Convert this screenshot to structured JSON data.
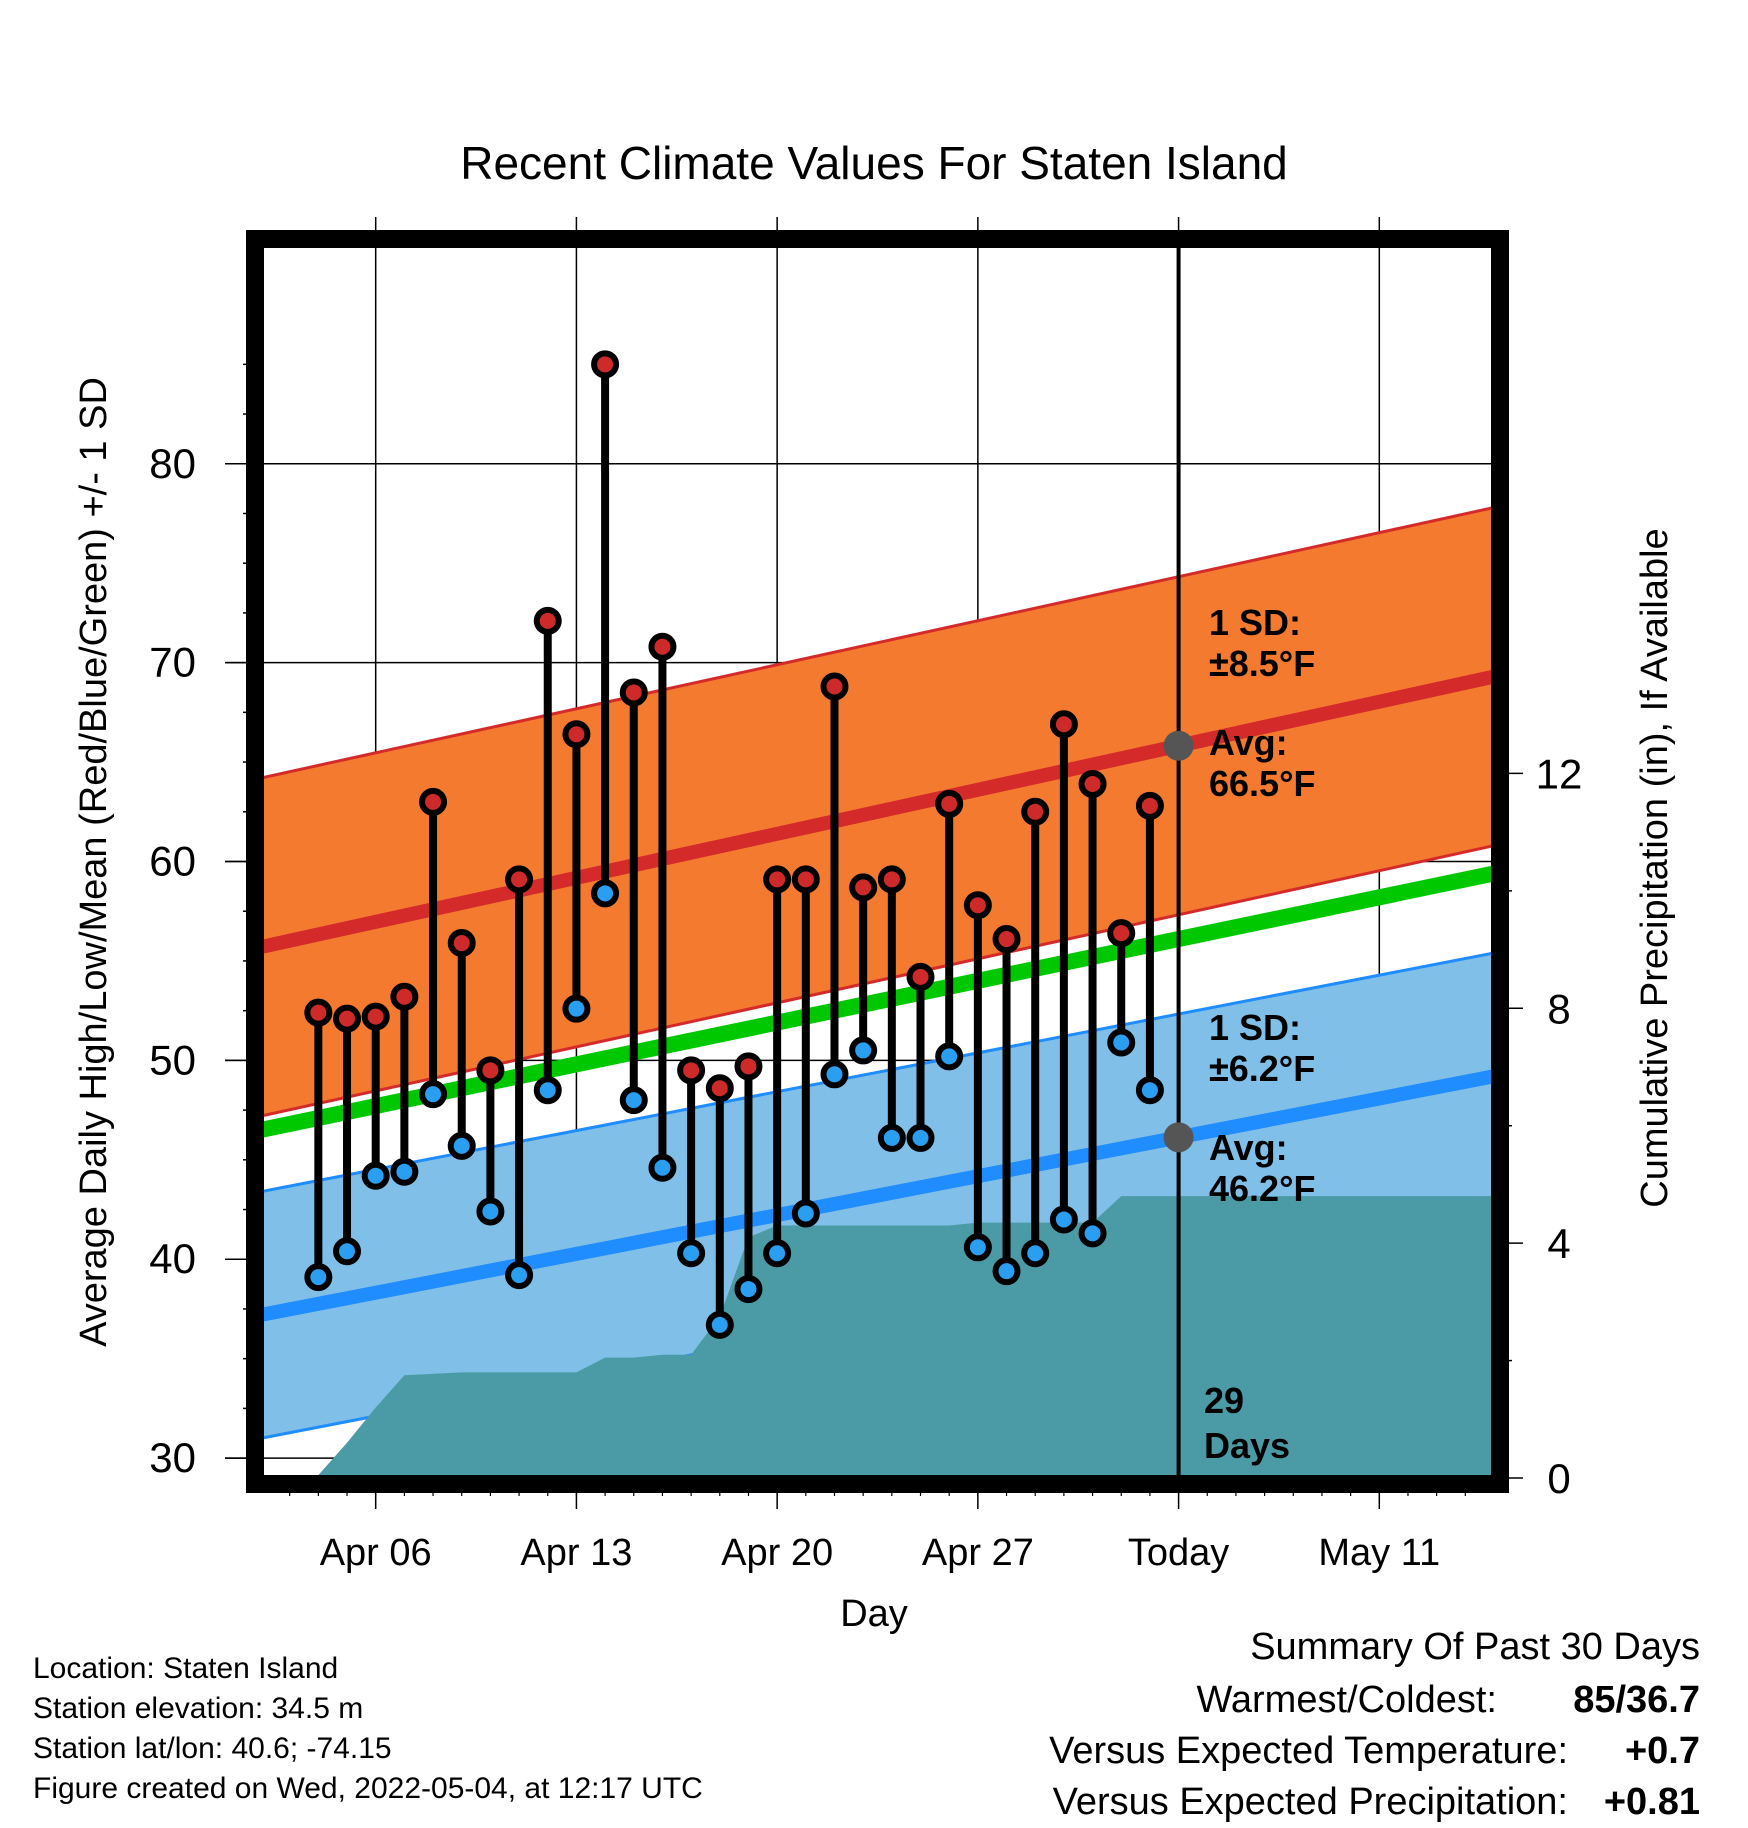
{
  "chart_data": {
    "type": "line",
    "title": "Recent Climate Values For Staten Island",
    "xlabel": "Day",
    "ylabel": "Average Daily High/Low/Mean (Red/Blue/Green) +/- 1 SD",
    "y2label": "Cumulative Precipitation (in), If Available",
    "xlim": [
      "2022-04-02",
      "2022-05-15"
    ],
    "ylim": [
      29,
      91
    ],
    "y2lim": [
      0,
      21
    ],
    "x_ticks": [
      {
        "date": "2022-04-06",
        "label": "Apr 06"
      },
      {
        "date": "2022-04-13",
        "label": "Apr 13"
      },
      {
        "date": "2022-04-20",
        "label": "Apr 20"
      },
      {
        "date": "2022-04-27",
        "label": "Apr 27"
      },
      {
        "date": "2022-05-04",
        "label": "Today"
      },
      {
        "date": "2022-05-11",
        "label": "May 11"
      }
    ],
    "y_ticks": [
      30,
      40,
      50,
      60,
      70,
      80
    ],
    "y2_ticks": [
      0,
      4,
      8,
      12
    ],
    "today": "2022-05-04",
    "days_label": [
      "29",
      "Days"
    ],
    "dates": [
      "2022-04-04",
      "2022-04-05",
      "2022-04-06",
      "2022-04-07",
      "2022-04-08",
      "2022-04-09",
      "2022-04-10",
      "2022-04-11",
      "2022-04-12",
      "2022-04-13",
      "2022-04-14",
      "2022-04-15",
      "2022-04-16",
      "2022-04-17",
      "2022-04-18",
      "2022-04-19",
      "2022-04-20",
      "2022-04-21",
      "2022-04-22",
      "2022-04-23",
      "2022-04-24",
      "2022-04-25",
      "2022-04-26",
      "2022-04-27",
      "2022-04-28",
      "2022-04-29",
      "2022-04-30",
      "2022-05-01",
      "2022-05-02",
      "2022-05-03"
    ],
    "highs": [
      52.4,
      52.1,
      52.2,
      53.2,
      63.0,
      55.9,
      49.5,
      59.1,
      72.1,
      66.4,
      85.0,
      68.5,
      70.8,
      49.5,
      48.6,
      49.7,
      59.1,
      59.1,
      68.8,
      58.7,
      59.1,
      54.2,
      62.9,
      57.8,
      56.1,
      62.5,
      66.9,
      63.9,
      56.4,
      62.8
    ],
    "lows": [
      39.1,
      40.4,
      44.2,
      44.4,
      48.3,
      45.7,
      42.4,
      39.2,
      48.5,
      52.6,
      58.4,
      48.0,
      44.6,
      40.3,
      36.7,
      38.5,
      40.3,
      42.3,
      49.3,
      50.5,
      46.1,
      46.1,
      50.2,
      40.6,
      39.4,
      40.3,
      42.0,
      41.3,
      50.9,
      48.5
    ],
    "normal_high": {
      "start": 55.7,
      "end": 69.3,
      "sd": 8.5
    },
    "normal_low": {
      "start": 37.2,
      "end": 49.2,
      "sd": 6.2
    },
    "normal_mean": {
      "start": 46.5,
      "end": 59.4
    },
    "cumulative_precip": [
      [
        "2022-04-02",
        0.0
      ],
      [
        "2022-04-03",
        0.0
      ],
      [
        "2022-04-04",
        0.05
      ],
      [
        "2022-04-05",
        0.6
      ],
      [
        "2022-04-06",
        1.2
      ],
      [
        "2022-04-07",
        1.75
      ],
      [
        "2022-04-09",
        1.8
      ],
      [
        "2022-04-12",
        1.8
      ],
      [
        "2022-04-13",
        1.8
      ],
      [
        "2022-04-14",
        2.05
      ],
      [
        "2022-04-15",
        2.05
      ],
      [
        "2022-04-16",
        2.1
      ],
      [
        "2022-04-17",
        2.1
      ],
      [
        "2022-04-18",
        2.75
      ],
      [
        "2022-04-19",
        4.1
      ],
      [
        "2022-04-20",
        4.3
      ],
      [
        "2022-04-24",
        4.3
      ],
      [
        "2022-04-26",
        4.3
      ],
      [
        "2022-04-27",
        4.35
      ],
      [
        "2022-05-01",
        4.35
      ],
      [
        "2022-05-02",
        4.8
      ],
      [
        "2022-05-15",
        4.8
      ]
    ],
    "annotations": {
      "high_sd_label": "1 SD:",
      "high_sd_value": "±8.5°F",
      "high_avg_label": "Avg:",
      "high_avg_value": "66.5°F",
      "low_sd_label": "1 SD:",
      "low_sd_value": "±6.2°F",
      "low_avg_label": "Avg:",
      "low_avg_value": "46.2°F"
    },
    "colors": {
      "high_band": "#f47a30",
      "high_line": "#d42a2a",
      "low_band": "#80bfe8",
      "low_line": "#1f8cff",
      "mean_line": "#00c800",
      "precip": "#4a9ba5",
      "high_dot": "#cf2a2a",
      "low_dot": "#2a9ef0",
      "positive_temp": "#d42a2a",
      "positive_precip": "#22bb22"
    }
  },
  "footer": {
    "location": "Location: Staten Island",
    "elevation": "Station elevation: 34.5 m",
    "latlon": "Station lat/lon: 40.6; -74.15",
    "created": "Figure created on Wed, 2022-05-04, at 12:17 UTC"
  },
  "summary": {
    "title": "Summary Of Past 30 Days",
    "warmest_label": "Warmest/Coldest:",
    "warmest_value": "85/36.7",
    "temp_label": "Versus Expected Temperature:",
    "temp_value": "+0.7",
    "precip_label": "Versus Expected Precipitation:",
    "precip_value": "+0.81"
  }
}
